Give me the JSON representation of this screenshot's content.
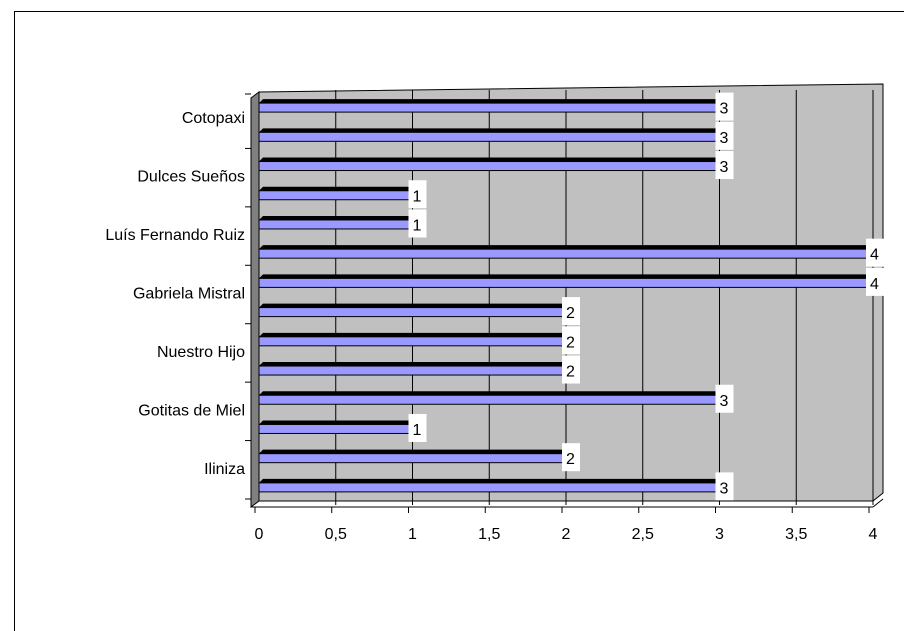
{
  "chart_data": {
    "type": "bar",
    "orientation": "horizontal",
    "style": "3d",
    "plot_background": "#c0c0c0",
    "bar_color": "#9999ff",
    "gridlines": true,
    "category_labels": [
      "Iliniza",
      "Gotitas de Miel",
      "Nuestro Hijo",
      "Gabriela Mistral",
      "Luís Fernando Ruiz",
      "Dulces Sueños",
      "Cotopaxi"
    ],
    "bar_values_bottom_to_top": [
      3,
      2,
      1,
      3,
      2,
      2,
      2,
      4,
      4,
      1,
      1,
      3,
      3,
      3
    ],
    "data_labels": [
      "3",
      "2",
      "1",
      "3",
      "2",
      "2",
      "2",
      "4",
      "4",
      "1",
      "1",
      "3",
      "3",
      "3"
    ],
    "x_ticks": [
      "0",
      "0,5",
      "1",
      "1,5",
      "2",
      "2,5",
      "3",
      "3,5",
      "4"
    ],
    "xlim": [
      0,
      4
    ]
  }
}
